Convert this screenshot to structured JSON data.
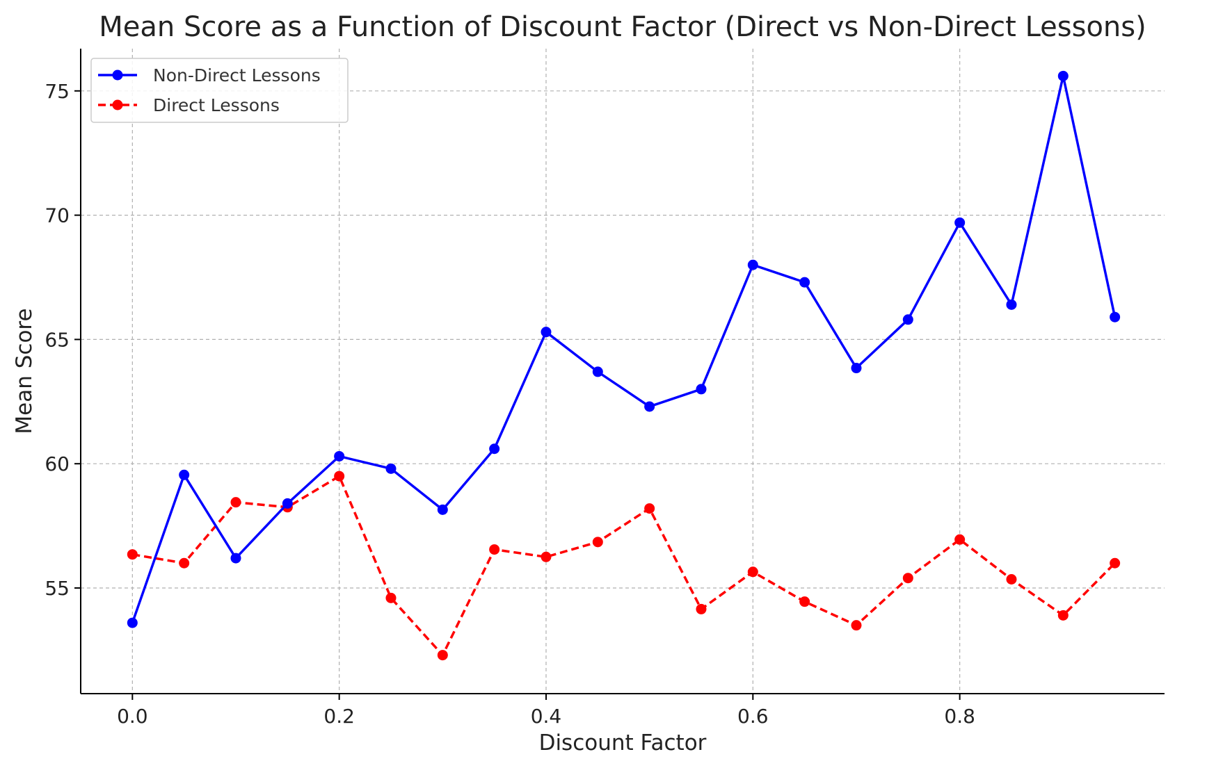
{
  "chart_data": {
    "type": "line",
    "title": "Mean Score as a Function of Discount Factor (Direct vs Non-Direct Lessons)",
    "xlabel": "Discount Factor",
    "ylabel": "Mean Score",
    "xlim": [
      -0.05,
      0.998
    ],
    "ylim": [
      50.75,
      76.7
    ],
    "xticks": [
      0.0,
      0.2,
      0.4,
      0.6,
      0.8
    ],
    "xtick_labels": [
      "0.0",
      "0.2",
      "0.4",
      "0.6",
      "0.8"
    ],
    "yticks": [
      55,
      60,
      65,
      70,
      75
    ],
    "ytick_labels": [
      "55",
      "60",
      "65",
      "70",
      "75"
    ],
    "grid": true,
    "legend_position": "top-left",
    "x": [
      0.0,
      0.05,
      0.1,
      0.15,
      0.2,
      0.25,
      0.3,
      0.35,
      0.4,
      0.45,
      0.5,
      0.55,
      0.6,
      0.65,
      0.7,
      0.75,
      0.8,
      0.85,
      0.9,
      0.95
    ],
    "series": [
      {
        "name": "Non-Direct Lessons",
        "color": "#0000ff",
        "line_style": "solid",
        "marker": "circle",
        "values": [
          53.6,
          59.55,
          56.2,
          58.4,
          60.3,
          59.8,
          58.15,
          60.6,
          65.3,
          63.7,
          62.3,
          63.0,
          68.0,
          67.3,
          63.85,
          65.8,
          69.7,
          66.4,
          75.6,
          65.9
        ]
      },
      {
        "name": "Direct Lessons",
        "color": "#ff0000",
        "line_style": "dashed",
        "marker": "circle",
        "values": [
          56.35,
          56.0,
          58.45,
          58.25,
          59.5,
          54.6,
          52.3,
          56.55,
          56.25,
          56.85,
          58.2,
          54.15,
          55.65,
          54.45,
          53.5,
          55.4,
          56.95,
          55.35,
          53.9,
          56.0
        ]
      }
    ]
  }
}
